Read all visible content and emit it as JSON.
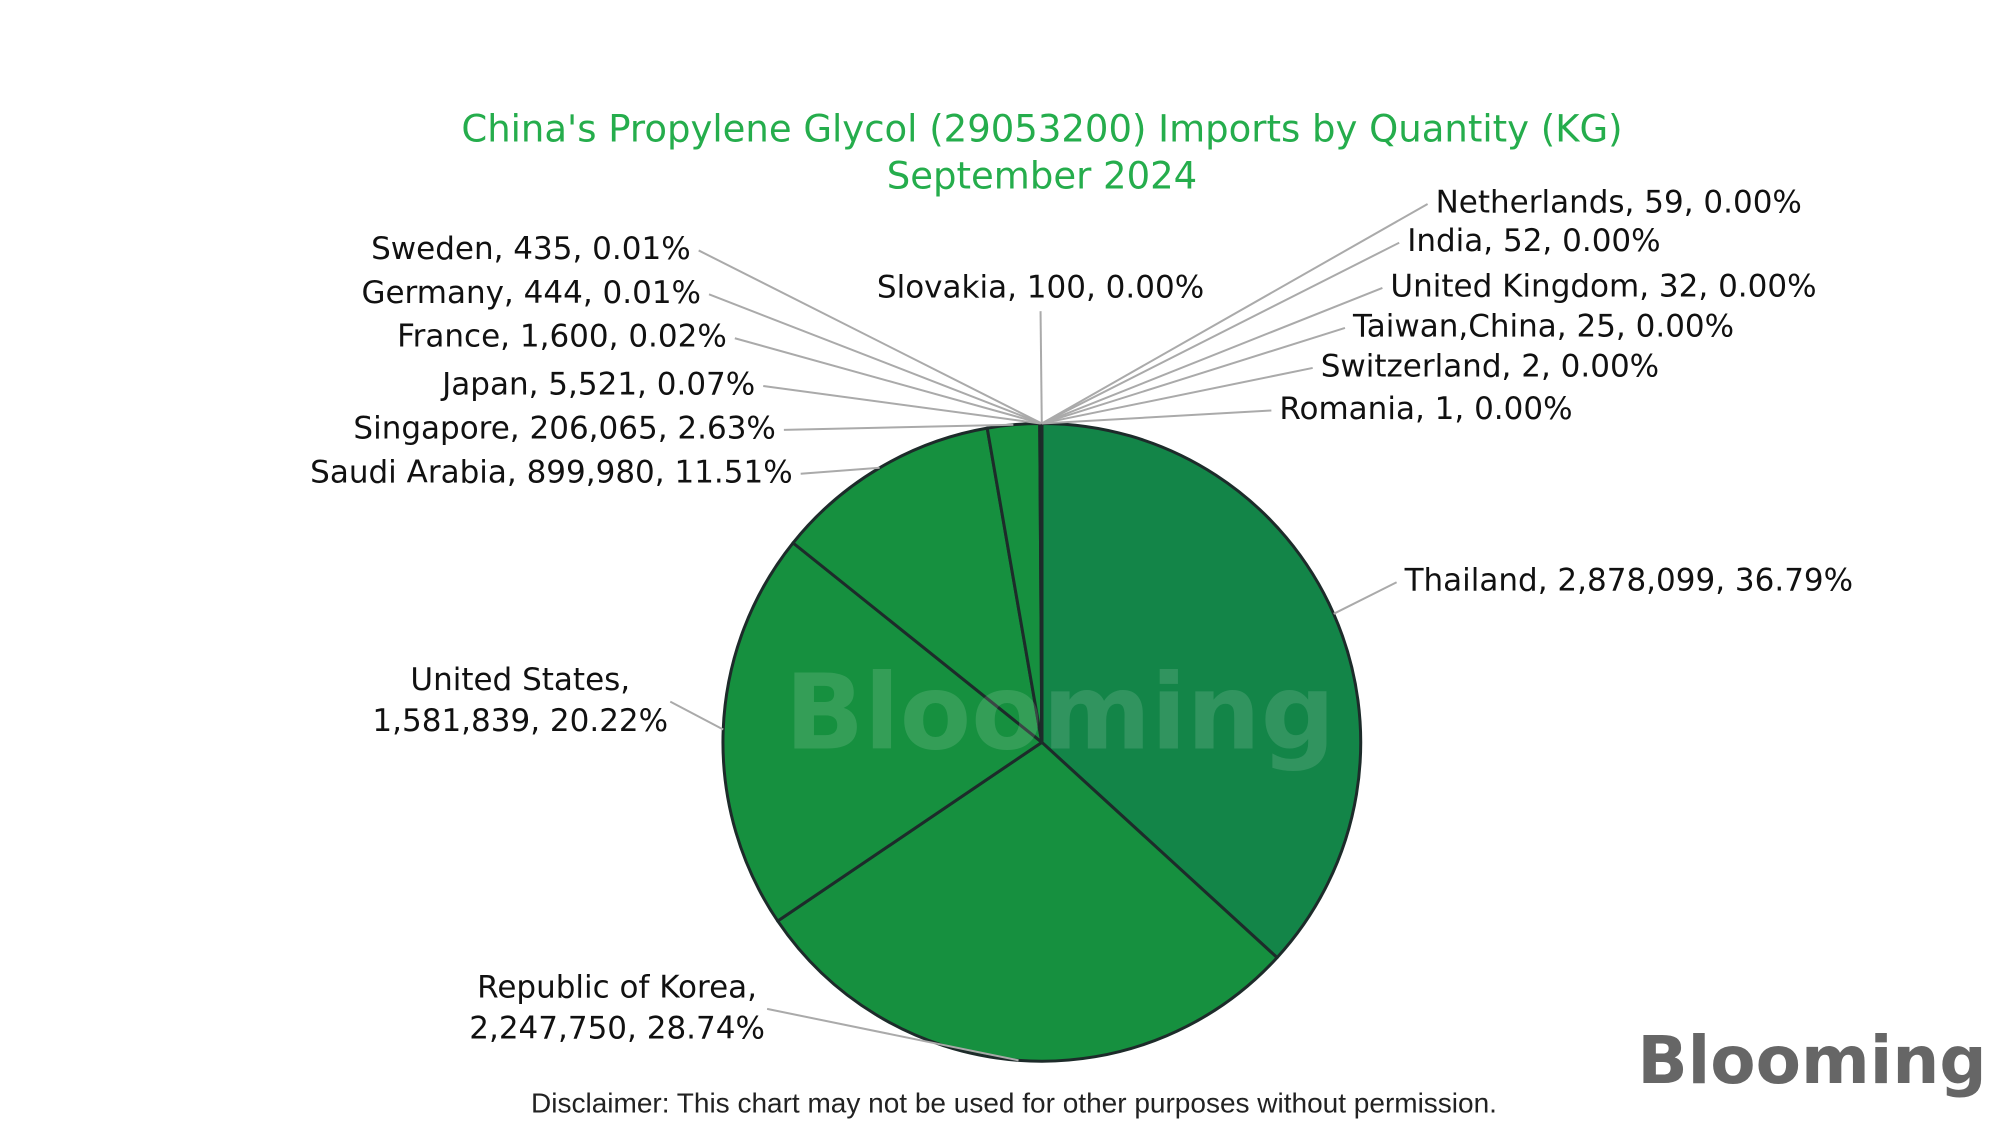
{
  "chart_data": {
    "type": "pie",
    "title": "China's Propylene Glycol (29053200) Imports by Quantity (KG)",
    "subtitle": "September 2024",
    "values": [
      2878099,
      2247750,
      1581839,
      899980,
      206065,
      5521,
      1600,
      444,
      435,
      100,
      59,
      52,
      32,
      25,
      2,
      1
    ],
    "value_labels": [
      [
        "Thailand, 2,878,099, 36.79%"
      ],
      [
        "Republic of Korea,",
        "2,247,750, 28.74%"
      ],
      [
        "United States,",
        "1,581,839, 20.22%"
      ],
      [
        "Saudi Arabia, 899,980, 11.51%"
      ],
      [
        "Singapore, 206,065, 2.63%"
      ],
      [
        "Japan, 5,521, 0.07%"
      ],
      [
        "France, 1,600, 0.02%"
      ],
      [
        "Germany, 444, 0.01%"
      ],
      [
        "Sweden, 435, 0.01%"
      ],
      [
        "Slovakia, 100, 0.00%"
      ],
      [
        "Netherlands, 59, 0.00%"
      ],
      [
        "India, 52, 0.00%"
      ],
      [
        "United Kingdom, 32, 0.00%"
      ],
      [
        "Taiwan,China, 25, 0.00%"
      ],
      [
        "Switzerland, 2, 0.00%"
      ],
      [
        "Romania, 1, 0.00%"
      ]
    ],
    "colors": [
      "#138548",
      "#16903f",
      "#16903f",
      "#16903f",
      "#16903f",
      "#16903f",
      "#16903f",
      "#16903f",
      "#16903f",
      "#16903f",
      "#16903f",
      "#16903f",
      "#16903f",
      "#16903f",
      "#16903f",
      "#16903f"
    ],
    "watermark": "Blooming",
    "logo": "Blooming",
    "disclaimer": "Disclaimer: This chart may not be used for other purposes without permission."
  }
}
